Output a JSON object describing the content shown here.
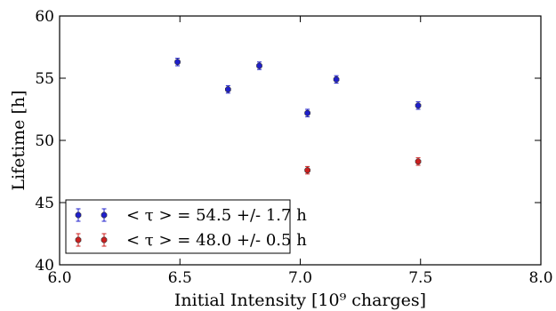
{
  "chart_data": {
    "type": "scatter",
    "xlabel": "Initial Intensity [10⁹ charges]",
    "ylabel": "Lifetime [h]",
    "xlim": [
      6.0,
      8.0
    ],
    "ylim": [
      40,
      60
    ],
    "xticks": [
      "6.0",
      "6.5",
      "7.0",
      "7.5",
      "8.0"
    ],
    "yticks": [
      "40",
      "45",
      "50",
      "55",
      "60"
    ],
    "grid": false,
    "legend_position": "lower-left",
    "series": [
      {
        "name": "< τ > = 54.5 +/- 1.7 h",
        "color": "#1f1fcc",
        "points": [
          {
            "x": 6.49,
            "y": 56.3,
            "err": 0.3
          },
          {
            "x": 6.7,
            "y": 54.1,
            "err": 0.3
          },
          {
            "x": 6.83,
            "y": 56.0,
            "err": 0.3
          },
          {
            "x": 7.03,
            "y": 52.2,
            "err": 0.3
          },
          {
            "x": 7.15,
            "y": 54.9,
            "err": 0.3
          },
          {
            "x": 7.49,
            "y": 52.8,
            "err": 0.3
          }
        ]
      },
      {
        "name": "< τ > = 48.0 +/- 0.5 h",
        "color": "#cc1f1f",
        "points": [
          {
            "x": 7.03,
            "y": 47.6,
            "err": 0.3
          },
          {
            "x": 7.49,
            "y": 48.3,
            "err": 0.3
          }
        ]
      }
    ]
  }
}
